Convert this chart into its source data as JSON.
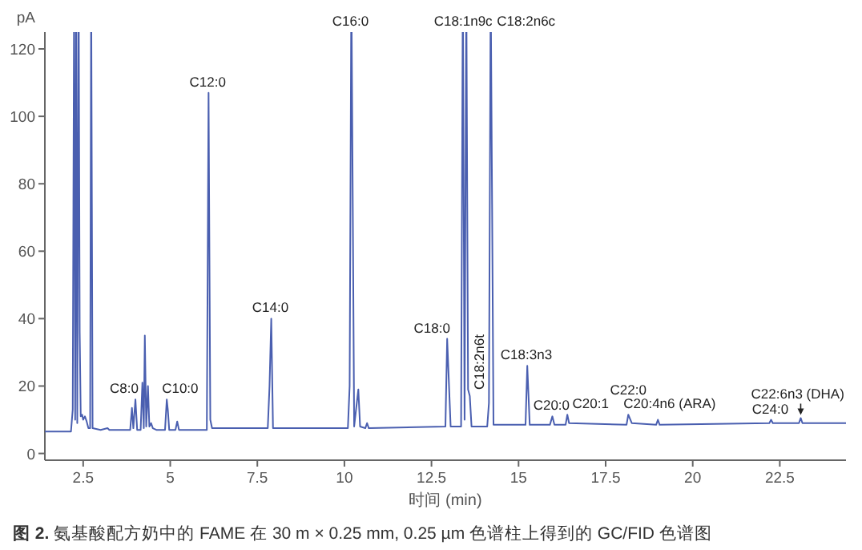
{
  "chart_data": {
    "type": "line",
    "xlabel": "时间 (min)",
    "ylabel": "pA",
    "color": "#4a5fb0",
    "xlim": [
      1.4,
      24.4
    ],
    "ylim": [
      -2,
      125
    ],
    "xticks": [
      2.5,
      5.0,
      7.5,
      10.0,
      12.5,
      15.0,
      17.5,
      20.0,
      22.5
    ],
    "yticks": [
      0,
      20,
      40,
      60,
      80,
      100,
      120
    ],
    "x": [
      1.4,
      2.15,
      2.2,
      2.24,
      2.27,
      2.3,
      2.33,
      2.37,
      2.4,
      2.43,
      2.47,
      2.5,
      2.55,
      2.6,
      2.65,
      2.7,
      2.73,
      2.77,
      3.0,
      3.2,
      3.25,
      3.85,
      3.9,
      3.94,
      4.0,
      4.05,
      4.15,
      4.2,
      4.24,
      4.27,
      4.31,
      4.36,
      4.4,
      4.45,
      4.5,
      4.6,
      4.85,
      4.9,
      4.93,
      4.97,
      5.15,
      5.2,
      5.25,
      6.05,
      6.1,
      6.15,
      6.2,
      7.8,
      7.85,
      7.9,
      7.95,
      10.1,
      10.15,
      10.2,
      10.28,
      10.4,
      10.45,
      10.6,
      10.65,
      10.7,
      12.9,
      12.95,
      13.05,
      13.35,
      13.4,
      13.45,
      13.5,
      13.55,
      13.6,
      13.65,
      14.1,
      14.15,
      14.2,
      14.28,
      15.2,
      15.25,
      15.32,
      15.9,
      15.97,
      16.03,
      16.35,
      16.4,
      16.45,
      18.1,
      18.15,
      18.25,
      18.95,
      19.0,
      19.05,
      22.2,
      22.25,
      22.3,
      23.05,
      23.1,
      23.15,
      24.4
    ],
    "values": [
      6.5,
      6.5,
      13,
      null,
      10,
      null,
      9,
      null,
      36,
      11,
      11.5,
      10,
      11,
      9.5,
      7.5,
      7.5,
      null,
      7.5,
      7,
      7.5,
      7,
      7,
      13.5,
      7.5,
      16,
      7,
      7,
      21,
      7.5,
      35,
      8,
      20,
      8,
      9,
      7.5,
      7,
      7,
      16,
      13,
      7,
      7,
      9.5,
      7,
      7,
      107,
      10,
      7.5,
      7.5,
      20,
      40,
      7.5,
      7.5,
      20,
      null,
      8,
      19,
      8,
      7.5,
      9,
      7.5,
      8,
      34,
      8,
      8,
      null,
      10,
      null,
      19,
      17,
      8,
      8,
      15,
      null,
      8.5,
      8.5,
      26,
      8.5,
      8.5,
      11,
      8.5,
      8.5,
      11.5,
      9,
      8.5,
      11.5,
      9,
      8.5,
      10,
      8.5,
      9,
      10,
      9,
      9,
      10.5,
      9,
      9
    ],
    "annotations": [
      {
        "text": "C8:0",
        "x": 4.0,
        "y": 16
      },
      {
        "text": "C10:0",
        "x": 4.9,
        "y": 16
      },
      {
        "text": "C12:0",
        "x": 6.1,
        "y": 107
      },
      {
        "text": "C14:0",
        "x": 7.9,
        "y": 40
      },
      {
        "text": "C16:0",
        "x": 10.2
      },
      {
        "text": "C18:0",
        "x": 12.95,
        "y": 34
      },
      {
        "text": "C18:1n9c",
        "x": 13.45
      },
      {
        "text": "C18:2n6t",
        "x": 13.6,
        "y": 17
      },
      {
        "text": "C18:2n6c",
        "x": 14.2
      },
      {
        "text": "C18:3n3",
        "x": 15.25,
        "y": 26
      },
      {
        "text": "C20:0",
        "x": 15.97,
        "y": 11
      },
      {
        "text": "C20:1",
        "x": 16.4,
        "y": 11.5
      },
      {
        "text": "C20:4n6 (ARA)",
        "x": 18.15,
        "y": 11.5
      },
      {
        "text": "C22:0",
        "x": 19.0,
        "y": 10
      },
      {
        "text": "C24:0",
        "x": 22.25,
        "y": 10
      },
      {
        "text": "C22:6n3 (DHA)",
        "x": 23.1,
        "y": 10.5
      },
      "**图 2.** 氨基酸配方奶中的 FAME 在 30 m × 0.25 mm, 0.25 µm 色谱柱上得到的 GC/FID 色谱图"
    ]
  }
}
